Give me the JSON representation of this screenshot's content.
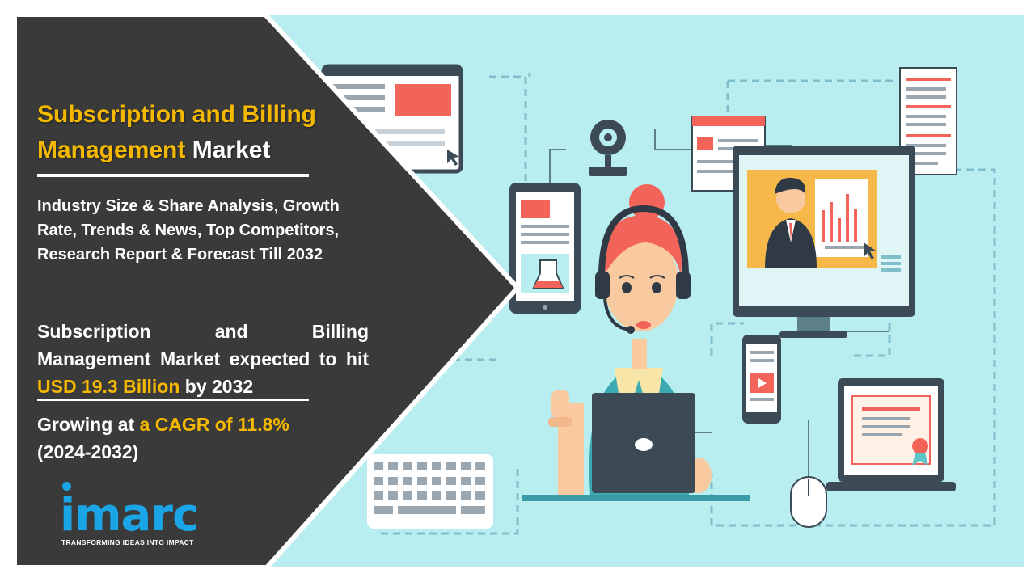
{
  "colors": {
    "accent_yellow": "#f5b800",
    "panel_dark": "#3a3a3a",
    "illustration_bg": "#b8eef0",
    "logo_blue": "#1aa6e6",
    "screen_red": "#f2645a",
    "dashed_line": "#7fbfcc"
  },
  "headline": {
    "title_part1": "Subscription and Billing Management",
    "title_part2": "Market"
  },
  "subtitle": "Industry Size & Share Analysis, Growth Rate, Trends & News, Top Competitors, Research Report & Forecast Till 2032",
  "stat": {
    "prefix": "Subscription and Billing Management Market expected to hit",
    "value": "USD 19.3 Billion",
    "suffix": "by 2032"
  },
  "growth": {
    "prefix": "Growing at",
    "cagr": "a CAGR of 11.8%",
    "period": "(2024-2032)"
  },
  "logo": {
    "wordmark": "imarc",
    "tagline": "TRANSFORMING IDEAS INTO IMPACT"
  },
  "illustration_icons": [
    "webpage-monitor-icon",
    "webcam-icon",
    "tablet-icon",
    "document-icon",
    "video-call-monitor-icon",
    "support-agent-icon",
    "laptop-icon",
    "smartphone-icon",
    "keyboard-icon",
    "mouse-icon",
    "certificate-laptop-icon"
  ]
}
